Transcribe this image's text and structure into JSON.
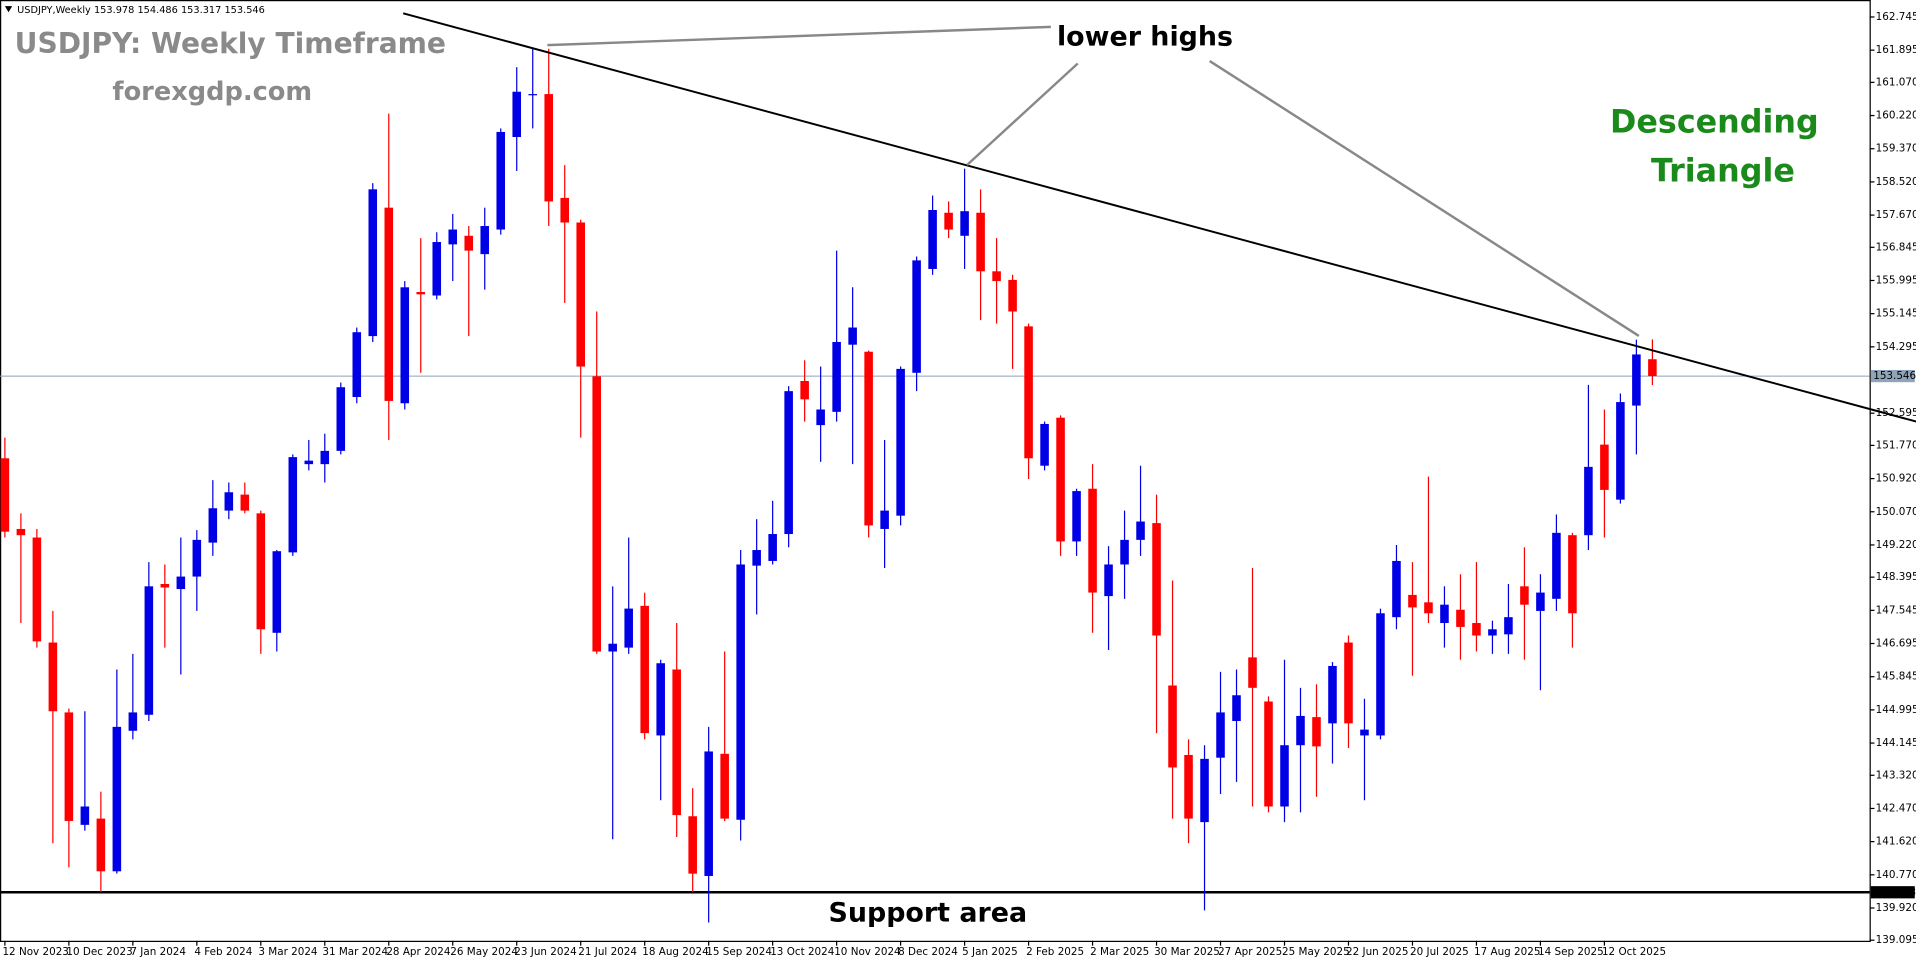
{
  "chart_data": {
    "type": "candlestick",
    "symbol": "USDJPY,Weekly",
    "title": "USDJPY: Weekly Timeframe",
    "subtitle": "forexgdp.com",
    "annotation": "lower highs",
    "pattern": [
      "Descending",
      "Triangle"
    ],
    "support_text": "Support area",
    "support_level": 140.323,
    "trendline": {
      "start": [
        24.9,
        162.84
      ],
      "end": [
        119.5,
        152.38
      ]
    },
    "up_color": "#0000e6",
    "down_color": "#ff0000",
    "grid": false,
    "categories": [
      "12 Nov 2023",
      null,
      null,
      null,
      "10 Dec 2023",
      null,
      null,
      null,
      "7 Jan 2024",
      null,
      null,
      null,
      "4 Feb 2024",
      null,
      null,
      null,
      "3 Mar 2024",
      null,
      null,
      null,
      "31 Mar 2024",
      null,
      null,
      null,
      "28 Apr 2024",
      null,
      null,
      null,
      "26 May 2024",
      null,
      null,
      null,
      "23 Jun 2024",
      null,
      null,
      null,
      "21 Jul 2024",
      null,
      null,
      null,
      "18 Aug 2024",
      null,
      null,
      null,
      "15 Sep 2024",
      null,
      null,
      null,
      "13 Oct 2024",
      null,
      null,
      null,
      "10 Nov 2024",
      null,
      null,
      null,
      "8 Dec 2024",
      null,
      null,
      null,
      "5 Jan 2025",
      null,
      null,
      null,
      "2 Feb 2025",
      null,
      null,
      null,
      "2 Mar 2025",
      null,
      null,
      null,
      "30 Mar 2025",
      null,
      null,
      null,
      "27 Apr 2025",
      null,
      null,
      null,
      "25 May 2025",
      null,
      null,
      null,
      "22 Jun 2025",
      null,
      null,
      null,
      "20 Jul 2025",
      null,
      null,
      null,
      "17 Aug 2025",
      null,
      null,
      null,
      "14 Sep 2025",
      null,
      null,
      null,
      "12 Oct 2025",
      null,
      null,
      null
    ],
    "open": [
      151.44,
      149.63,
      149.41,
      146.72,
      144.93,
      142.05,
      142.21,
      140.86,
      144.46,
      144.87,
      148.22,
      148.09,
      148.41,
      149.28,
      150.1,
      150.51,
      150.03,
      146.97,
      149.03,
      151.29,
      151.29,
      151.63,
      153.01,
      154.57,
      157.86,
      152.85,
      155.7,
      155.61,
      156.92,
      157.14,
      156.67,
      157.3,
      159.67,
      160.74,
      160.77,
      158.11,
      157.48,
      153.54,
      146.49,
      146.59,
      147.66,
      144.34,
      146.03,
      142.27,
      140.74,
      143.87,
      142.18,
      148.69,
      148.81,
      149.5,
      153.42,
      152.29,
      152.63,
      154.35,
      154.17,
      149.63,
      149.97,
      153.63,
      156.29,
      157.73,
      157.14,
      157.73,
      156.23,
      156.01,
      154.82,
      151.25,
      152.48,
      149.31,
      150.66,
      147.91,
      148.72,
      149.35,
      149.78,
      145.62,
      143.84,
      142.12,
      143.77,
      144.71,
      146.34,
      145.21,
      142.52,
      144.09,
      144.81,
      144.65,
      146.72,
      144.34,
      144.34,
      147.37,
      147.94,
      147.75,
      147.22,
      147.56,
      147.22,
      146.9,
      146.93,
      148.16,
      147.53,
      147.84,
      149.47,
      149.47,
      151.79,
      150.38,
      152.79,
      153.978
    ],
    "high": [
      151.97,
      150.03,
      149.63,
      147.53,
      145.03,
      144.96,
      142.9,
      146.03,
      146.43,
      148.78,
      148.72,
      149.41,
      149.6,
      150.88,
      150.82,
      150.82,
      150.1,
      149.09,
      151.54,
      151.91,
      152.07,
      153.38,
      154.79,
      158.49,
      160.27,
      155.98,
      157.08,
      157.23,
      157.7,
      157.39,
      157.86,
      159.89,
      161.46,
      161.93,
      161.93,
      158.95,
      157.55,
      155.2,
      148.16,
      149.41,
      148.0,
      146.28,
      147.22,
      142.99,
      144.56,
      146.49,
      149.09,
      149.88,
      150.35,
      153.29,
      153.95,
      153.79,
      156.76,
      155.82,
      154.2,
      151.91,
      153.79,
      156.61,
      158.17,
      158.02,
      158.86,
      158.33,
      157.08,
      156.14,
      154.89,
      152.38,
      152.54,
      150.66,
      151.29,
      149.19,
      150.1,
      151.25,
      150.51,
      148.31,
      144.24,
      144.09,
      145.97,
      146.03,
      148.63,
      145.34,
      146.28,
      145.56,
      145.65,
      146.22,
      146.9,
      145.28,
      147.59,
      149.22,
      148.78,
      150.97,
      148.16,
      148.47,
      148.78,
      147.28,
      148.22,
      149.16,
      148.47,
      150.0,
      149.53,
      153.32,
      152.69,
      153.1,
      154.48,
      154.486
    ],
    "low": [
      149.41,
      147.22,
      146.59,
      141.58,
      140.96,
      141.9,
      140.33,
      140.8,
      144.24,
      144.71,
      146.59,
      145.9,
      147.53,
      148.94,
      149.88,
      150.03,
      146.43,
      146.49,
      148.94,
      151.13,
      150.82,
      151.54,
      152.85,
      154.42,
      151.91,
      152.69,
      153.63,
      155.51,
      155.98,
      154.57,
      155.76,
      157.17,
      158.8,
      159.89,
      157.39,
      155.42,
      151.97,
      146.43,
      141.68,
      146.43,
      144.24,
      142.68,
      141.74,
      140.33,
      139.55,
      142.15,
      141.65,
      147.44,
      148.72,
      149.16,
      152.38,
      151.35,
      152.38,
      151.29,
      149.41,
      148.63,
      149.72,
      153.16,
      156.14,
      157.08,
      156.29,
      154.98,
      154.89,
      153.73,
      150.91,
      151.13,
      148.94,
      148.94,
      146.97,
      146.53,
      147.84,
      148.94,
      144.4,
      142.21,
      141.58,
      139.86,
      142.84,
      143.15,
      142.52,
      142.37,
      142.12,
      142.37,
      142.77,
      143.62,
      144.02,
      142.68,
      144.24,
      147.06,
      145.87,
      147.22,
      146.59,
      146.28,
      146.49,
      146.43,
      146.43,
      146.28,
      145.5,
      147.53,
      146.59,
      149.09,
      149.41,
      150.28,
      151.54,
      153.317
    ],
    "close": [
      149.56,
      149.47,
      146.75,
      144.96,
      142.15,
      142.52,
      140.86,
      144.56,
      144.93,
      148.16,
      148.13,
      148.41,
      149.35,
      150.16,
      150.57,
      150.1,
      147.06,
      149.06,
      151.47,
      151.38,
      151.63,
      153.26,
      154.67,
      158.33,
      152.91,
      155.82,
      155.64,
      156.98,
      157.3,
      156.76,
      157.39,
      159.8,
      160.83,
      160.77,
      158.02,
      157.48,
      153.79,
      146.49,
      146.69,
      147.59,
      144.4,
      146.19,
      142.3,
      140.8,
      143.93,
      142.21,
      148.72,
      149.09,
      149.5,
      153.16,
      152.95,
      152.69,
      154.42,
      154.79,
      149.72,
      150.1,
      153.73,
      156.51,
      157.8,
      157.3,
      157.77,
      156.23,
      155.98,
      155.2,
      151.44,
      152.32,
      149.31,
      150.6,
      148.0,
      148.72,
      149.35,
      149.82,
      146.9,
      143.52,
      142.21,
      143.74,
      144.93,
      145.37,
      145.56,
      142.52,
      144.09,
      144.84,
      144.06,
      146.12,
      144.65,
      144.49,
      147.47,
      148.81,
      147.62,
      147.47,
      147.69,
      147.12,
      146.9,
      147.06,
      147.37,
      147.69,
      148.0,
      149.53,
      147.47,
      151.22,
      150.63,
      152.88,
      154.1,
      153.546
    ],
    "ylim": [
      139.08,
      163.18
    ],
    "yticks": [
      162.745,
      161.895,
      {
        "value": 161.07,
        "label": "161.070"
      },
      {
        "value": 160.22,
        "label": "160.220"
      },
      {
        "value": 159.37,
        "label": "159.370"
      },
      {
        "value": 158.52,
        "label": "158.520"
      },
      {
        "value": 157.67,
        "label": "157.670"
      },
      156.845,
      155.995,
      155.145,
      154.295,
      152.595,
      {
        "value": 151.77,
        "label": "151.770"
      },
      {
        "value": 150.92,
        "label": "150.920"
      },
      {
        "value": 150.07,
        "label": "150.070"
      },
      {
        "value": 149.22,
        "label": "149.220"
      },
      148.395,
      147.545,
      146.695,
      145.845,
      144.995,
      144.145,
      {
        "value": 143.32,
        "label": "143.320"
      },
      {
        "value": 142.47,
        "label": "142.470"
      },
      {
        "value": 141.62,
        "label": "141.620"
      },
      {
        "value": 140.77,
        "label": "140.770"
      },
      {
        "value": 139.92,
        "label": "139.920"
      },
      139.095
    ]
  }
}
